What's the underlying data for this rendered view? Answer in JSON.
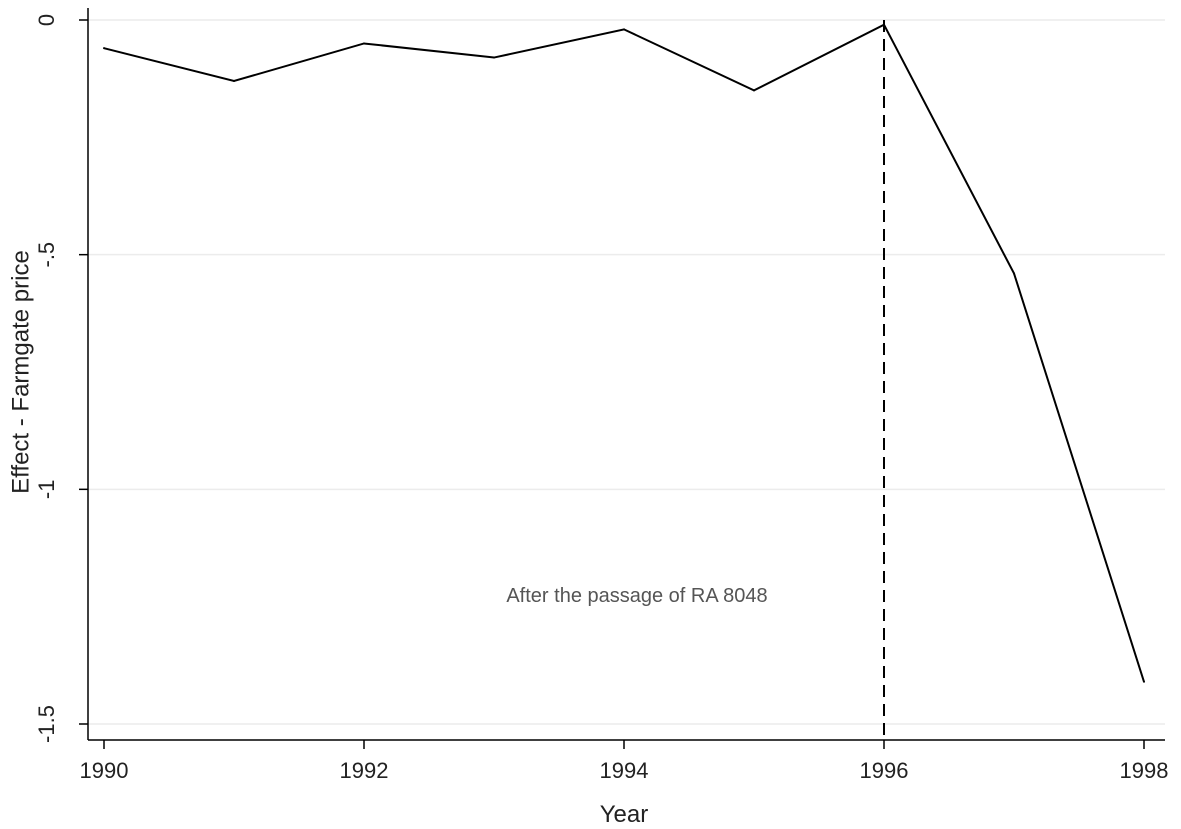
{
  "chart_data": {
    "type": "line",
    "title": "",
    "xlabel": "Year",
    "ylabel": "Effect - Farmgate price",
    "xlim": [
      1990,
      1998
    ],
    "ylim": [
      -1.5,
      0
    ],
    "grid": true,
    "x_ticks": [
      1990,
      1992,
      1994,
      1996,
      1998
    ],
    "x_tick_labels": [
      "1990",
      "1992",
      "1994",
      "1996",
      "1998"
    ],
    "y_ticks": [
      0,
      -0.5,
      -1,
      -1.5
    ],
    "y_tick_labels": [
      "0",
      "-.5",
      "-1",
      "-1.5"
    ],
    "series": [
      {
        "x": [
          1990,
          1991,
          1992,
          1993,
          1994,
          1995,
          1996,
          1997,
          1998
        ],
        "values": [
          -0.06,
          -0.13,
          -0.05,
          -0.08,
          -0.02,
          -0.15,
          -0.01,
          -0.54,
          -1.41
        ],
        "color": "#000000"
      }
    ],
    "reference_line": {
      "x": 1996,
      "style": "dashed",
      "color": "#000000"
    },
    "annotation": {
      "text": "After the passage of RA 8048",
      "x": 1994.1,
      "y": -1.24
    }
  }
}
